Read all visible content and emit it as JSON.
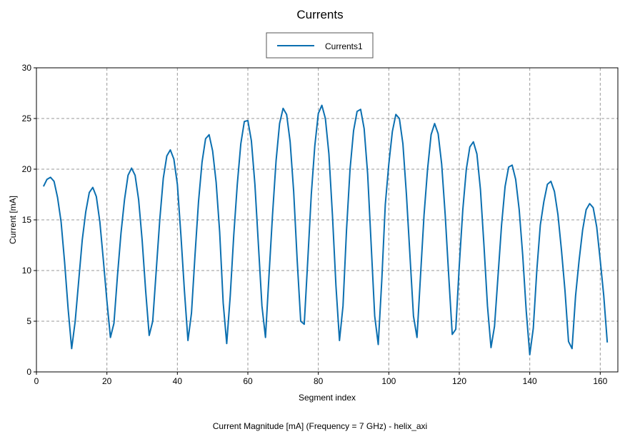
{
  "chart_data": {
    "type": "line",
    "title": "Currents",
    "xlabel": "Segment index",
    "ylabel": "Current [mA]",
    "caption": "Current Magnitude [mA] (Frequency = 7 GHz) - helix_axi",
    "xlim": [
      0,
      165
    ],
    "ylim": [
      0,
      30
    ],
    "xticks": [
      0,
      20,
      40,
      60,
      80,
      100,
      120,
      140,
      160
    ],
    "yticks": [
      0,
      5,
      10,
      15,
      20,
      25,
      30
    ],
    "grid": true,
    "legend_position": "top-center",
    "series": [
      {
        "name": "Currents1",
        "color": "#0b6fb0",
        "x": [
          2,
          3,
          4,
          5,
          6,
          7,
          8,
          9,
          10,
          11,
          12,
          13,
          14,
          15,
          16,
          17,
          18,
          19,
          20,
          21,
          22,
          23,
          24,
          25,
          26,
          27,
          28,
          29,
          30,
          31,
          32,
          33,
          34,
          35,
          36,
          37,
          38,
          39,
          40,
          41,
          42,
          43,
          44,
          45,
          46,
          47,
          48,
          49,
          50,
          51,
          52,
          53,
          54,
          55,
          56,
          57,
          58,
          59,
          60,
          61,
          62,
          63,
          64,
          65,
          66,
          67,
          68,
          69,
          70,
          71,
          72,
          73,
          74,
          75,
          76,
          77,
          78,
          79,
          80,
          81,
          82,
          83,
          84,
          85,
          86,
          87,
          88,
          89,
          90,
          91,
          92,
          93,
          94,
          95,
          96,
          97,
          98,
          99,
          100,
          101,
          102,
          103,
          104,
          105,
          106,
          107,
          108,
          109,
          110,
          111,
          112,
          113,
          114,
          115,
          116,
          117,
          118,
          119,
          120,
          121,
          122,
          123,
          124,
          125,
          126,
          127,
          128,
          129,
          130,
          131,
          132,
          133,
          134,
          135,
          136,
          137,
          138,
          139,
          140,
          141,
          142,
          143,
          144,
          145,
          146,
          147,
          148,
          149,
          150,
          151,
          152,
          153,
          154,
          155,
          156,
          157,
          158,
          159,
          160,
          161,
          162
        ],
        "y": [
          18.3,
          19.0,
          19.2,
          18.8,
          17.2,
          14.8,
          10.8,
          6.2,
          2.3,
          5.0,
          9.0,
          13.0,
          15.8,
          17.7,
          18.2,
          17.3,
          14.8,
          11.0,
          7.0,
          3.4,
          4.8,
          9.5,
          13.7,
          17.0,
          19.4,
          20.1,
          19.4,
          17.0,
          13.0,
          8.0,
          3.6,
          5.0,
          10.0,
          15.0,
          19.1,
          21.3,
          21.9,
          21.0,
          18.5,
          13.5,
          8.0,
          3.1,
          5.8,
          11.5,
          16.8,
          20.7,
          23.0,
          23.4,
          21.8,
          18.7,
          13.8,
          6.8,
          2.8,
          7.5,
          13.5,
          18.5,
          22.5,
          24.7,
          24.8,
          22.8,
          18.5,
          12.5,
          6.5,
          3.4,
          9.5,
          15.5,
          20.8,
          24.5,
          26.0,
          25.4,
          22.7,
          17.8,
          11.0,
          5.0,
          4.7,
          11.0,
          17.5,
          22.3,
          25.5,
          26.3,
          25.0,
          21.5,
          15.5,
          8.5,
          3.1,
          6.5,
          14.0,
          20.0,
          23.8,
          25.7,
          25.9,
          24.0,
          19.5,
          12.5,
          5.5,
          2.7,
          9.0,
          16.5,
          20.5,
          23.7,
          25.4,
          25.0,
          22.5,
          17.5,
          11.5,
          5.5,
          3.4,
          9.5,
          15.5,
          20.0,
          23.4,
          24.5,
          23.5,
          20.5,
          15.5,
          9.5,
          3.7,
          4.2,
          10.5,
          16.0,
          20.0,
          22.2,
          22.7,
          21.5,
          18.0,
          12.5,
          6.5,
          2.4,
          4.5,
          9.5,
          14.5,
          18.3,
          20.2,
          20.4,
          19.0,
          16.0,
          11.5,
          6.0,
          1.7,
          4.3,
          10.0,
          14.5,
          16.8,
          18.5,
          18.8,
          17.8,
          15.5,
          12.0,
          8.0,
          3.0,
          2.3,
          7.5,
          11.0,
          14.0,
          16.0,
          16.6,
          16.2,
          14.3,
          11.0,
          7.5,
          2.9
        ]
      }
    ]
  }
}
